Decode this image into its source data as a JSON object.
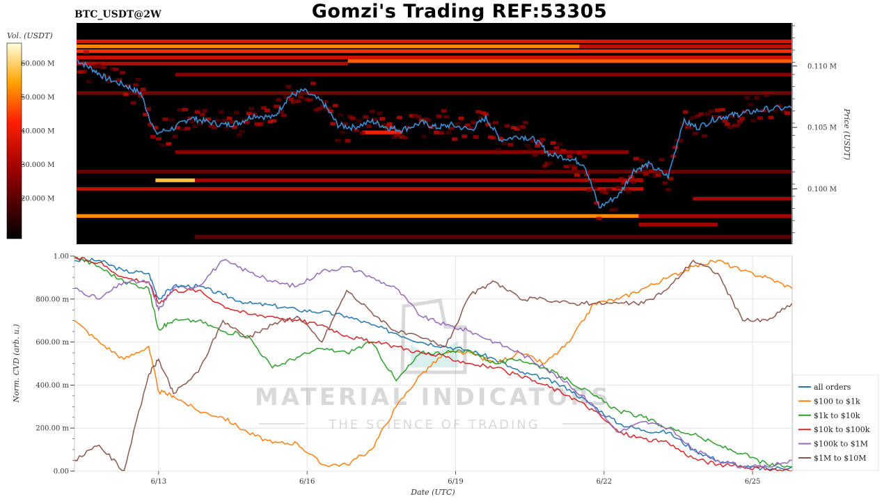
{
  "header": {
    "symbol": "BTC_USDT@2W",
    "title": "Gomzi's Trading REF:53305"
  },
  "watermark": {
    "main": "MATERIAL INDICATORS",
    "sub": "THE SCIENCE OF TRADING"
  },
  "colors": {
    "price": "#3b8fd6",
    "heat_bg": "#000000"
  },
  "chart_data": [
    {
      "type": "heatmap",
      "title": "",
      "colorbar": {
        "label": "Vol. (USDT)",
        "ticks": [
          "20.000 M",
          "30.000 M",
          "40.000 M",
          "50.000 M",
          "60.000 M"
        ],
        "tick_values": [
          20,
          30,
          40,
          50,
          60
        ],
        "range": [
          8,
          66
        ]
      },
      "ylabel": "Price (USDT)",
      "y_ticks": [
        "0.100 M",
        "0.105 M",
        "0.110 M"
      ],
      "y_tick_values": [
        0.1,
        0.105,
        0.11
      ],
      "ylim": [
        0.0955,
        0.1135
      ],
      "xlim": [
        0,
        14.5
      ],
      "price_series": {
        "name": "price",
        "x": [
          0,
          0.3,
          0.6,
          1.0,
          1.3,
          1.6,
          2.0,
          2.3,
          2.6,
          3.0,
          3.3,
          3.6,
          4.0,
          4.3,
          4.6,
          5.0,
          5.3,
          5.6,
          6.0,
          6.3,
          6.6,
          7.0,
          7.3,
          7.6,
          8.0,
          8.3,
          8.6,
          9.0,
          9.3,
          9.6,
          10.0,
          10.3,
          10.6,
          11.0,
          11.3,
          11.6,
          12.0,
          12.3,
          12.6,
          13.0,
          13.3,
          13.6,
          14.0,
          14.5
        ],
        "y": [
          0.1105,
          0.1098,
          0.109,
          0.1084,
          0.1078,
          0.1045,
          0.105,
          0.1058,
          0.1055,
          0.1052,
          0.1054,
          0.106,
          0.1058,
          0.1075,
          0.108,
          0.107,
          0.1052,
          0.105,
          0.1055,
          0.105,
          0.1048,
          0.1054,
          0.105,
          0.1052,
          0.1048,
          0.1058,
          0.104,
          0.1043,
          0.104,
          0.1028,
          0.1025,
          0.102,
          0.0985,
          0.0995,
          0.1015,
          0.102,
          0.101,
          0.1055,
          0.105,
          0.1058,
          0.106,
          0.1062,
          0.1065,
          0.1066
        ]
      },
      "bands": [
        {
          "price": 0.112,
          "x0": 0,
          "x1": 14.5,
          "vol": 38
        },
        {
          "price": 0.1116,
          "x0": 0,
          "x1": 10.2,
          "vol": 52
        },
        {
          "price": 0.1116,
          "x0": 10.2,
          "x1": 14.5,
          "vol": 34
        },
        {
          "price": 0.1112,
          "x0": 0,
          "x1": 14.5,
          "vol": 44
        },
        {
          "price": 0.1107,
          "x0": 0,
          "x1": 14.5,
          "vol": 36
        },
        {
          "price": 0.1104,
          "x0": 5.5,
          "x1": 14.5,
          "vol": 48
        },
        {
          "price": 0.1102,
          "x0": 0,
          "x1": 5.5,
          "vol": 32
        },
        {
          "price": 0.1093,
          "x0": 2.0,
          "x1": 14.5,
          "vol": 26
        },
        {
          "price": 0.1078,
          "x0": 0,
          "x1": 14.5,
          "vol": 24
        },
        {
          "price": 0.1046,
          "x0": 5.8,
          "x1": 6.6,
          "vol": 42
        },
        {
          "price": 0.103,
          "x0": 2.0,
          "x1": 11.2,
          "vol": 26
        },
        {
          "price": 0.1014,
          "x0": 0,
          "x1": 14.5,
          "vol": 22
        },
        {
          "price": 0.1007,
          "x0": 1.6,
          "x1": 2.4,
          "vol": 58
        },
        {
          "price": 0.1007,
          "x0": 2.4,
          "x1": 11.5,
          "vol": 30
        },
        {
          "price": 0.1,
          "x0": 0,
          "x1": 11.5,
          "vol": 34
        },
        {
          "price": 0.0992,
          "x0": 12.5,
          "x1": 14.5,
          "vol": 30
        },
        {
          "price": 0.0978,
          "x0": 0,
          "x1": 11.4,
          "vol": 52
        },
        {
          "price": 0.0978,
          "x0": 11.4,
          "x1": 14.5,
          "vol": 30
        },
        {
          "price": 0.0971,
          "x0": 11.4,
          "x1": 13.0,
          "vol": 30
        },
        {
          "price": 0.0961,
          "x0": 2.4,
          "x1": 14.5,
          "vol": 20
        }
      ]
    },
    {
      "type": "line",
      "title": "",
      "xlabel": "Date (UTC)",
      "ylabel": "Norm. CVD (arb. u.)",
      "xlim": [
        0,
        14.5
      ],
      "ylim": [
        0,
        1
      ],
      "x_ticks": [
        "6/13",
        "6/16",
        "6/19",
        "6/22",
        "6/25"
      ],
      "x_tick_values": [
        1.7,
        4.7,
        7.7,
        10.7,
        13.7
      ],
      "y_ticks": [
        "0.00",
        "200.00 m",
        "400.00 m",
        "600.00 m",
        "800.00 m",
        "1.00"
      ],
      "y_tick_values": [
        0,
        0.2,
        0.4,
        0.6,
        0.8,
        1.0
      ],
      "x": [
        0,
        0.5,
        1.0,
        1.5,
        1.7,
        2.0,
        2.5,
        3.0,
        3.5,
        4.0,
        4.5,
        5.0,
        5.5,
        6.0,
        6.5,
        7.0,
        7.5,
        8.0,
        8.5,
        9.0,
        9.5,
        10.0,
        10.5,
        11.0,
        11.5,
        12.0,
        12.5,
        13.0,
        13.5,
        14.0,
        14.5
      ],
      "series": [
        {
          "name": "all orders",
          "color": "#1f77b4",
          "values": [
            0.98,
            0.98,
            0.93,
            0.92,
            0.8,
            0.86,
            0.86,
            0.82,
            0.78,
            0.77,
            0.75,
            0.74,
            0.72,
            0.68,
            0.64,
            0.6,
            0.58,
            0.56,
            0.52,
            0.46,
            0.43,
            0.38,
            0.3,
            0.22,
            0.19,
            0.18,
            0.1,
            0.05,
            0.02,
            0.01,
            0.02
          ]
        },
        {
          "name": "$100 to $1k",
          "color": "#ff7f0e",
          "values": [
            0.7,
            0.6,
            0.52,
            0.58,
            0.37,
            0.35,
            0.28,
            0.25,
            0.18,
            0.13,
            0.13,
            0.03,
            0.03,
            0.1,
            0.3,
            0.45,
            0.55,
            0.55,
            0.5,
            0.55,
            0.5,
            0.6,
            0.78,
            0.8,
            0.85,
            0.9,
            0.95,
            0.98,
            0.93,
            0.9,
            0.85
          ]
        },
        {
          "name": "$1k to $10k",
          "color": "#2ca02c",
          "values": [
            1.0,
            0.95,
            0.88,
            0.85,
            0.66,
            0.7,
            0.7,
            0.65,
            0.63,
            0.48,
            0.53,
            0.57,
            0.55,
            0.6,
            0.42,
            0.55,
            0.55,
            0.56,
            0.5,
            0.52,
            0.48,
            0.42,
            0.35,
            0.28,
            0.25,
            0.2,
            0.17,
            0.12,
            0.08,
            0.03,
            0.02
          ]
        },
        {
          "name": "$10k to $100k",
          "color": "#d62728",
          "values": [
            0.99,
            0.97,
            0.9,
            0.88,
            0.78,
            0.84,
            0.84,
            0.77,
            0.73,
            0.72,
            0.7,
            0.68,
            0.63,
            0.6,
            0.58,
            0.55,
            0.53,
            0.5,
            0.48,
            0.44,
            0.4,
            0.35,
            0.28,
            0.18,
            0.15,
            0.13,
            0.06,
            0.03,
            0.02,
            0.01,
            0.0
          ]
        },
        {
          "name": "$100k to $1M",
          "color": "#9467bd",
          "values": [
            0.85,
            0.8,
            0.88,
            0.88,
            0.75,
            0.85,
            0.86,
            0.98,
            0.93,
            0.88,
            0.86,
            0.93,
            0.95,
            0.9,
            0.85,
            0.72,
            0.68,
            0.65,
            0.6,
            0.55,
            0.48,
            0.4,
            0.3,
            0.18,
            0.23,
            0.2,
            0.1,
            0.05,
            0.02,
            0.02,
            0.05
          ]
        },
        {
          "name": "$1M to $10M",
          "color": "#8c564b",
          "values": [
            0.05,
            0.12,
            0.0,
            0.45,
            0.52,
            0.36,
            0.46,
            0.7,
            0.62,
            0.68,
            0.72,
            0.6,
            0.84,
            0.74,
            0.65,
            0.62,
            0.58,
            0.82,
            0.88,
            0.8,
            0.8,
            0.78,
            0.78,
            0.78,
            0.78,
            0.85,
            0.98,
            0.92,
            0.7,
            0.7,
            0.78
          ]
        }
      ]
    }
  ],
  "legend": {
    "placement": "right",
    "entries": [
      "all orders",
      "$100 to $1k",
      "$1k to $10k",
      "$10k to $100k",
      "$100k to $1M",
      "$1M to $10M"
    ]
  }
}
